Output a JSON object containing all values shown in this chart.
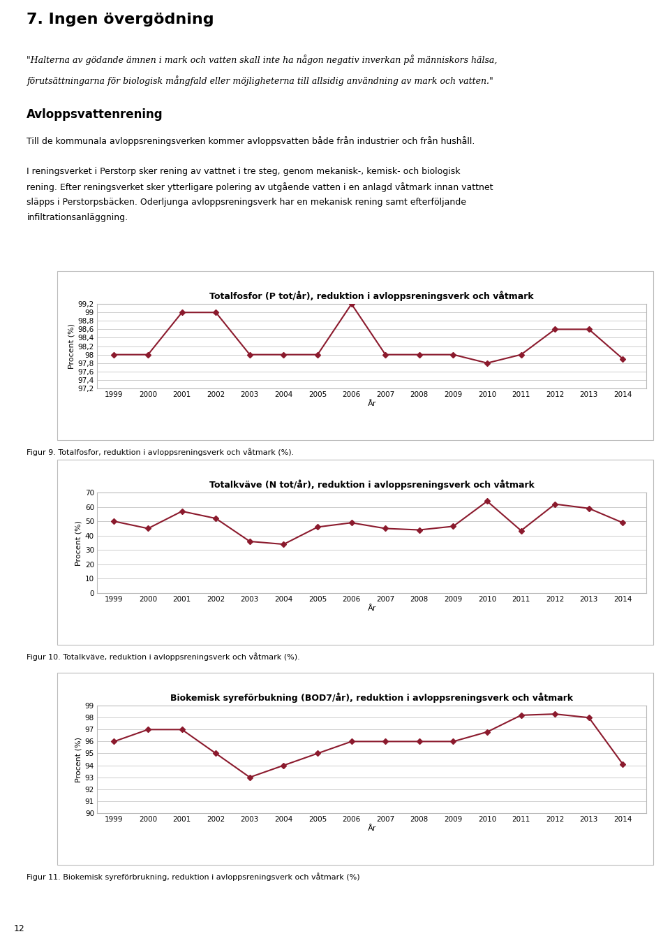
{
  "page_title": "7. Ingen övergödning",
  "quote_line1": "\"Halterna av gödande ämnen i mark och vatten skall inte ha någon negativ inverkan på människors hälsa,",
  "quote_line2": "förutsättningarna för biologisk mångfald eller möjligheterna till allsidig användning av mark och vatten.\"",
  "section_title": "Avloppsvattenrening",
  "body_line1": "Till de kommunala avloppsreningsverken kommer avloppsvatten både från industrier och från hushåll.",
  "body_line2": "I reningsverket i Perstorp sker rening av vattnet i tre steg, genom mekanisk-, kemisk- och biologisk",
  "body_line3": "rening. Efter reningsverket sker ytterligare polering av utgående vatten i en anlagd våtmark innan vattnet",
  "body_line4": "släpps i Perstorpsbäcken. Oderljunga avloppsreningsverk har en mekanisk rening samt efterföljande",
  "body_line5": "infiltrationsanläggning.",
  "page_number": "12",
  "chart1_title": "Totalfosfor (P tot/år), reduktion i avloppsreningsverk och våtmark",
  "chart1_ylabel": "Procent (%)",
  "chart1_xlabel": "År",
  "chart1_years": [
    1999,
    2000,
    2001,
    2002,
    2003,
    2004,
    2005,
    2006,
    2007,
    2008,
    2009,
    2010,
    2011,
    2012,
    2013,
    2014
  ],
  "chart1_values": [
    98.0,
    98.0,
    99.0,
    99.0,
    98.0,
    98.0,
    98.0,
    99.2,
    98.0,
    98.0,
    98.0,
    97.8,
    98.0,
    98.6,
    98.6,
    97.9
  ],
  "chart1_ylim": [
    97.2,
    99.2
  ],
  "chart1_ytick_vals": [
    97.2,
    97.4,
    97.6,
    97.8,
    98.0,
    98.2,
    98.4,
    98.6,
    98.8,
    99.0,
    99.2
  ],
  "chart1_ytick_labels": [
    "97,2",
    "97,4",
    "97,6",
    "97,8",
    "98",
    "98,2",
    "98,4",
    "98,6",
    "98,8",
    "99",
    "99,2"
  ],
  "chart1_figcap": "Figur 9. Totalfosfor, reduktion i avloppsreningsverk och våtmark (%).",
  "chart2_title": "Totalkväve (N tot/år), reduktion i avloppsreningsverk och våtmark",
  "chart2_ylabel": "Procent (%)",
  "chart2_xlabel": "År",
  "chart2_years": [
    1999,
    2000,
    2001,
    2002,
    2003,
    2004,
    2005,
    2006,
    2007,
    2008,
    2009,
    2010,
    2011,
    2012,
    2013,
    2014
  ],
  "chart2_values": [
    50.0,
    45.0,
    57.0,
    52.0,
    36.0,
    34.0,
    46.0,
    49.0,
    45.0,
    44.0,
    46.5,
    64.0,
    43.5,
    62.0,
    59.0,
    49.0
  ],
  "chart2_ylim": [
    0,
    70
  ],
  "chart2_ytick_vals": [
    0,
    10,
    20,
    30,
    40,
    50,
    60,
    70
  ],
  "chart2_ytick_labels": [
    "0",
    "10",
    "20",
    "30",
    "40",
    "50",
    "60",
    "70"
  ],
  "chart2_figcap": "Figur 10. Totalkväve, reduktion i avloppsreningsverk och våtmark (%).",
  "chart3_title": "Biokemisk syreförbukning (BOD7/år), reduktion i avloppsreningsverk och våtmark",
  "chart3_ylabel": "Procent (%)",
  "chart3_xlabel": "År",
  "chart3_years": [
    1999,
    2000,
    2001,
    2002,
    2003,
    2004,
    2005,
    2006,
    2007,
    2008,
    2009,
    2010,
    2011,
    2012,
    2013,
    2014
  ],
  "chart3_values": [
    96.0,
    97.0,
    97.0,
    95.0,
    93.0,
    94.0,
    95.0,
    96.0,
    96.0,
    96.0,
    96.0,
    96.8,
    98.2,
    98.3,
    98.0,
    94.1
  ],
  "chart3_ylim": [
    90,
    99
  ],
  "chart3_ytick_vals": [
    90,
    91,
    92,
    93,
    94,
    95,
    96,
    97,
    98,
    99
  ],
  "chart3_ytick_labels": [
    "90",
    "91",
    "92",
    "93",
    "94",
    "95",
    "96",
    "97",
    "98",
    "99"
  ],
  "chart3_figcap": "Figur 11. Biokemisk syreförbrukning, reduktion i avloppsreningsverk och våtmark (%)",
  "line_color": "#8B1A2D",
  "marker_style": "D",
  "marker_size": 4,
  "line_width": 1.5,
  "grid_color": "#cccccc",
  "box_edgecolor": "#bbbbbb",
  "text_color": "#000000"
}
